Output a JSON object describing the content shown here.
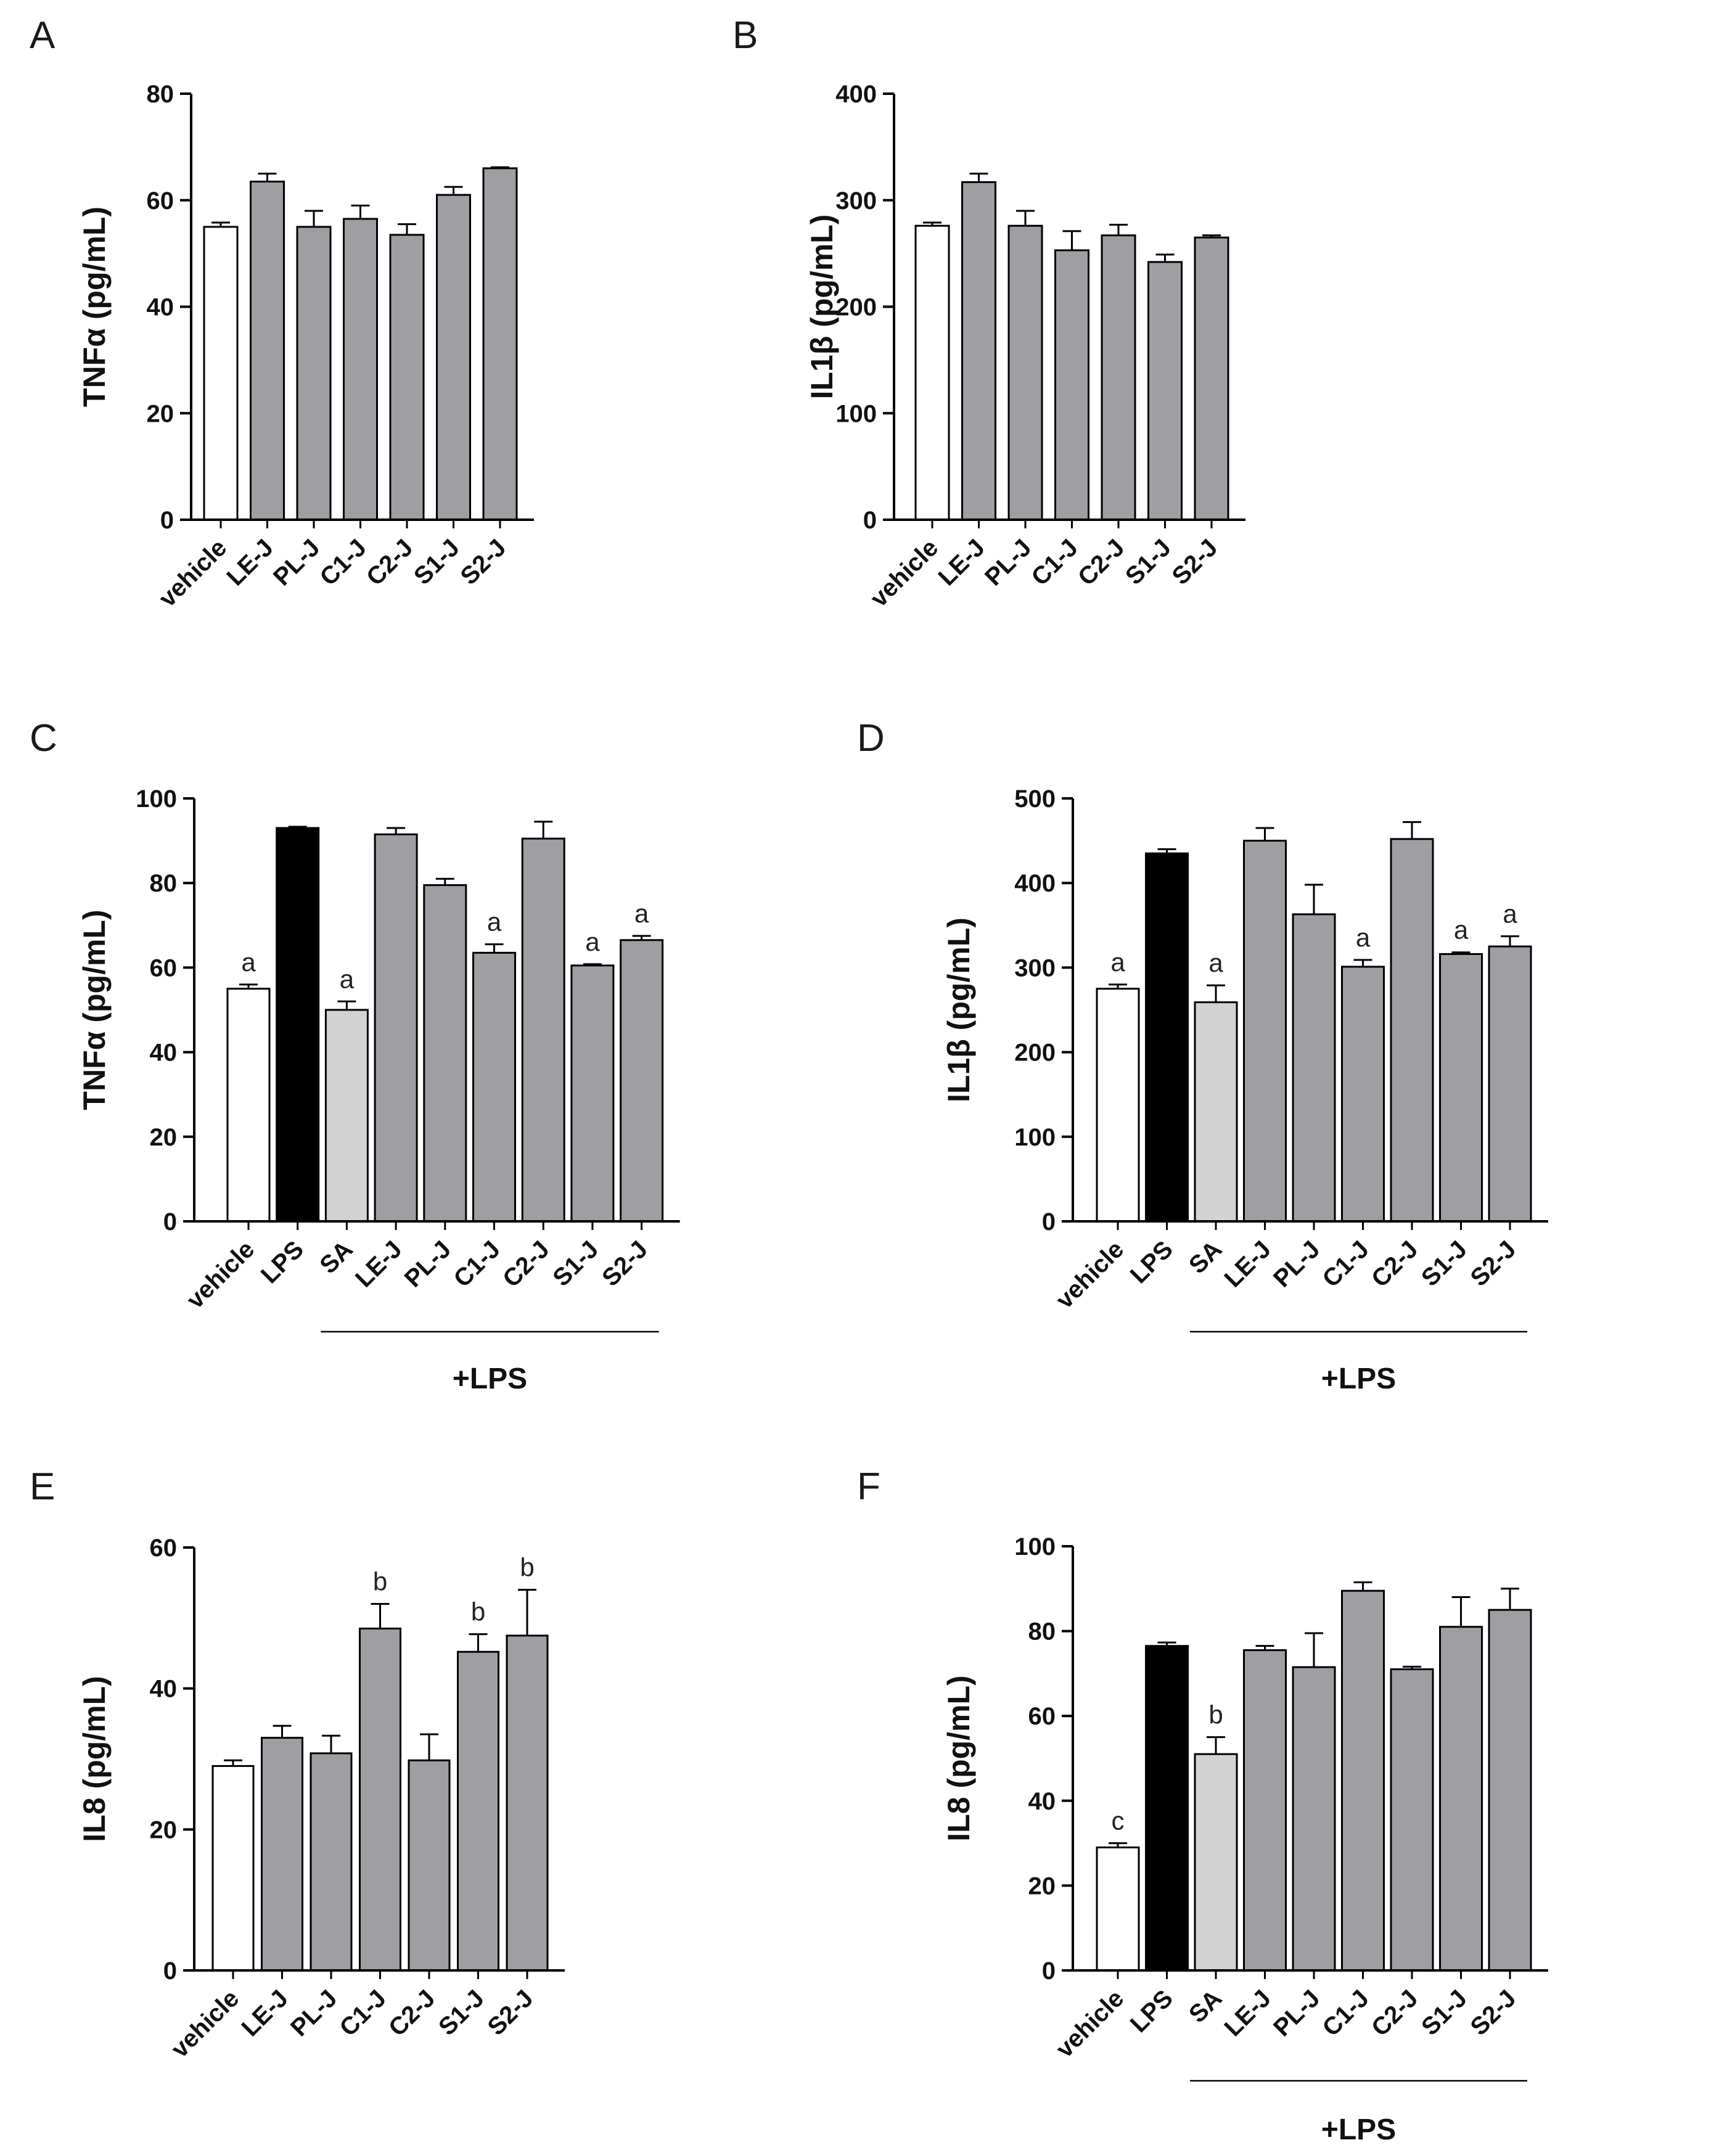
{
  "chart_data": [
    {
      "panel": "A",
      "type": "bar",
      "ylabel": "TNFα (pg/mL)",
      "ylim": [
        0,
        80
      ],
      "yticks": [
        0,
        20,
        40,
        60,
        80
      ],
      "categories": [
        "vehicle",
        "LE-J",
        "PL-J",
        "C1-J",
        "C2-J",
        "S1-J",
        "S2-J"
      ],
      "values": [
        55,
        63.5,
        55,
        56.5,
        53.5,
        61,
        66
      ],
      "errors": [
        0.8,
        1.5,
        3,
        2.5,
        2,
        1.5,
        0.2
      ],
      "colors": [
        "#ffffff",
        "#9e9ea3",
        "#9e9ea3",
        "#9e9ea3",
        "#9e9ea3",
        "#9e9ea3",
        "#9e9ea3"
      ],
      "annotations": [
        "",
        "",
        "",
        "",
        "",
        "",
        ""
      ],
      "group_label": "",
      "group_range": null
    },
    {
      "panel": "B",
      "type": "bar",
      "ylabel": "IL1β (pg/mL)",
      "ylim": [
        0,
        400
      ],
      "yticks": [
        0,
        100,
        200,
        300,
        400
      ],
      "categories": [
        "vehicle",
        "LE-J",
        "PL-J",
        "C1-J",
        "C2-J",
        "S1-J",
        "S2-J"
      ],
      "values": [
        276,
        317,
        276,
        253,
        267,
        242,
        265
      ],
      "errors": [
        3,
        8,
        14,
        18,
        10,
        7,
        2
      ],
      "colors": [
        "#ffffff",
        "#9e9ea3",
        "#9e9ea3",
        "#9e9ea3",
        "#9e9ea3",
        "#9e9ea3",
        "#9e9ea3"
      ],
      "annotations": [
        "",
        "",
        "",
        "",
        "",
        "",
        ""
      ],
      "group_label": "",
      "group_range": null
    },
    {
      "panel": "C",
      "type": "bar",
      "ylabel": "TNFα (pg/mL)",
      "ylim": [
        0,
        100
      ],
      "yticks": [
        0,
        20,
        40,
        60,
        80,
        100
      ],
      "categories": [
        "vehicle",
        "LPS",
        "SA",
        "LE-J",
        "PL-J",
        "C1-J",
        "C2-J",
        "S1-J",
        "S2-J"
      ],
      "values": [
        55,
        93,
        50,
        91.5,
        79.5,
        63.5,
        90.5,
        60.5,
        66.5
      ],
      "errors": [
        1,
        0.3,
        2,
        1.5,
        1.5,
        2,
        4,
        0.3,
        1
      ],
      "colors": [
        "#ffffff",
        "#000000",
        "#d3d3d3",
        "#9e9ea3",
        "#9e9ea3",
        "#9e9ea3",
        "#9e9ea3",
        "#9e9ea3",
        "#9e9ea3"
      ],
      "annotations": [
        "a",
        "",
        "a",
        "",
        "",
        "a",
        "",
        "a",
        "a"
      ],
      "group_label": "+LPS",
      "group_range": [
        2,
        8
      ]
    },
    {
      "panel": "D",
      "type": "bar",
      "ylabel": "IL1β (pg/mL)",
      "ylim": [
        0,
        500
      ],
      "yticks": [
        0,
        100,
        200,
        300,
        400,
        500
      ],
      "categories": [
        "vehicle",
        "LPS",
        "SA",
        "LE-J",
        "PL-J",
        "C1-J",
        "C2-J",
        "S1-J",
        "S2-J"
      ],
      "values": [
        275,
        435,
        259,
        450,
        363,
        301,
        452,
        316,
        325
      ],
      "errors": [
        5,
        5,
        20,
        15,
        35,
        8,
        20,
        2,
        12
      ],
      "colors": [
        "#ffffff",
        "#000000",
        "#d3d3d3",
        "#9e9ea3",
        "#9e9ea3",
        "#9e9ea3",
        "#9e9ea3",
        "#9e9ea3",
        "#9e9ea3"
      ],
      "annotations": [
        "a",
        "",
        "a",
        "",
        "",
        "a",
        "",
        "a",
        "a"
      ],
      "group_label": "+LPS",
      "group_range": [
        2,
        8
      ]
    },
    {
      "panel": "E",
      "type": "bar",
      "ylabel": "IL8 (pg/mL)",
      "ylim": [
        0,
        60
      ],
      "yticks": [
        0,
        20,
        40,
        60
      ],
      "categories": [
        "vehicle",
        "LE-J",
        "PL-J",
        "C1-J",
        "C2-J",
        "S1-J",
        "S2-J"
      ],
      "values": [
        29,
        33,
        30.8,
        48.5,
        29.8,
        45.2,
        47.5
      ],
      "errors": [
        0.8,
        1.7,
        2.5,
        3.5,
        3.7,
        2.5,
        6.5
      ],
      "colors": [
        "#ffffff",
        "#9e9ea3",
        "#9e9ea3",
        "#9e9ea3",
        "#9e9ea3",
        "#9e9ea3",
        "#9e9ea3"
      ],
      "annotations": [
        "",
        "",
        "",
        "b",
        "",
        "b",
        "b"
      ],
      "group_label": "",
      "group_range": null
    },
    {
      "panel": "F",
      "type": "bar",
      "ylabel": "IL8 (pg/mL)",
      "ylim": [
        0,
        100
      ],
      "yticks": [
        0,
        20,
        40,
        60,
        80,
        100
      ],
      "categories": [
        "vehicle",
        "LPS",
        "SA",
        "LE-J",
        "PL-J",
        "C1-J",
        "C2-J",
        "S1-J",
        "S2-J"
      ],
      "values": [
        29,
        76.5,
        51,
        75.5,
        71.5,
        89.5,
        71,
        81,
        85
      ],
      "errors": [
        1,
        0.8,
        4,
        1,
        8,
        2,
        0.6,
        7,
        5
      ],
      "colors": [
        "#ffffff",
        "#000000",
        "#d3d3d3",
        "#9e9ea3",
        "#9e9ea3",
        "#9e9ea3",
        "#9e9ea3",
        "#9e9ea3",
        "#9e9ea3"
      ],
      "annotations": [
        "c",
        "",
        "b",
        "",
        "",
        "",
        "",
        "",
        ""
      ],
      "group_label": "+LPS",
      "group_range": [
        2,
        8
      ]
    }
  ]
}
